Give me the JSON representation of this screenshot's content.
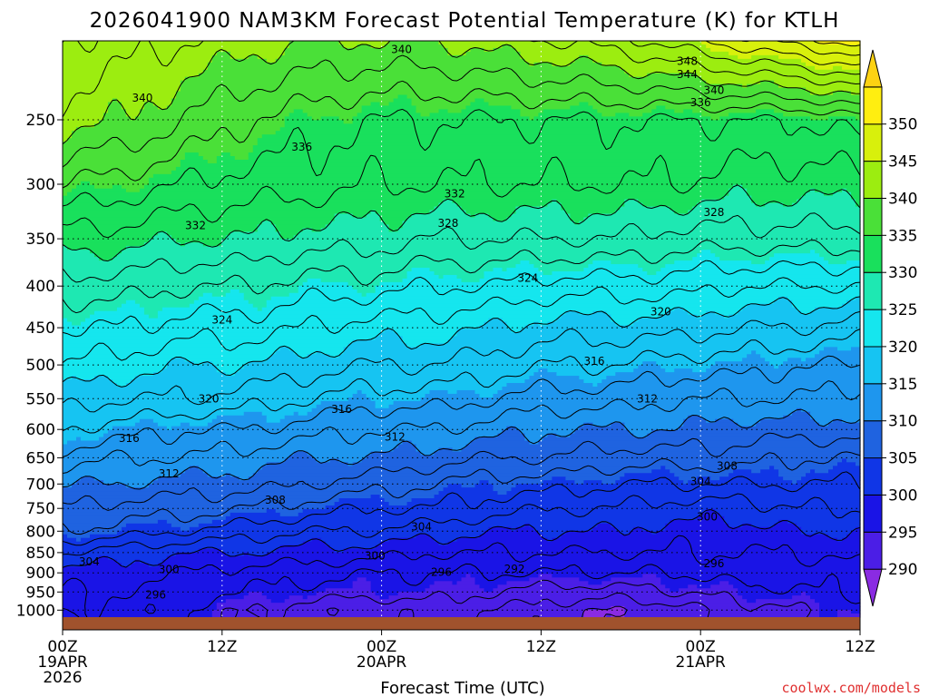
{
  "chart_data": {
    "type": "contour",
    "title": "2026041900 NAM3KM Forecast Potential Temperature (K) for KTLH",
    "xlabel": "Forecast Time (UTC)",
    "ylabel": "",
    "credit": "coolwx.com/models",
    "credit_color": "#e03030",
    "x_hours": [
      0,
      60
    ],
    "x_ticks": [
      {
        "hour": 0,
        "lines": [
          "00Z",
          "19APR",
          "2026"
        ]
      },
      {
        "hour": 12,
        "lines": [
          "12Z"
        ]
      },
      {
        "hour": 24,
        "lines": [
          "00Z",
          "20APR"
        ]
      },
      {
        "hour": 36,
        "lines": [
          "12Z"
        ]
      },
      {
        "hour": 48,
        "lines": [
          "00Z",
          "21APR"
        ]
      },
      {
        "hour": 60,
        "lines": [
          "12Z"
        ]
      }
    ],
    "pressure_range_hpa": [
      1020,
      200
    ],
    "y_ticks": [
      1000,
      950,
      900,
      850,
      800,
      750,
      700,
      650,
      600,
      550,
      500,
      450,
      400,
      350,
      300,
      250
    ],
    "colorbar": {
      "label_values": [
        290,
        295,
        300,
        305,
        310,
        315,
        320,
        325,
        330,
        335,
        340,
        345,
        350
      ],
      "colors": [
        "#8a2be2",
        "#4b1ee6",
        "#1a14e6",
        "#1036e6",
        "#1f63e0",
        "#1e96ee",
        "#16c4f2",
        "#15e6ee",
        "#1ee8b2",
        "#19e05c",
        "#4ae038",
        "#9ced10",
        "#d8f00c",
        "#ffee10",
        "#fdd212"
      ]
    },
    "theta_levels": [
      {
        "hpa": 1000,
        "values": [
          298,
          297,
          296,
          294,
          293,
          292,
          293,
          292,
          291,
          290,
          291,
          293,
          294,
          295
        ]
      },
      {
        "hpa": 950,
        "values": [
          298,
          298,
          297,
          296,
          295,
          295,
          295,
          294,
          293,
          293,
          294,
          295,
          296,
          296
        ]
      },
      {
        "hpa": 900,
        "values": [
          299,
          299,
          298,
          297,
          297,
          296,
          296,
          296,
          296,
          296,
          296,
          297,
          297,
          297
        ]
      },
      {
        "hpa": 850,
        "values": [
          302,
          301,
          300,
          300,
          299,
          299,
          298,
          298,
          298,
          298,
          298,
          298,
          298,
          299
        ]
      },
      {
        "hpa": 800,
        "values": [
          306,
          305,
          304,
          303,
          302,
          302,
          301,
          300,
          300,
          300,
          299,
          299,
          300,
          300
        ]
      },
      {
        "hpa": 750,
        "values": [
          308,
          307,
          307,
          306,
          305,
          304,
          304,
          303,
          302,
          302,
          301,
          301,
          302,
          302
        ]
      },
      {
        "hpa": 700,
        "values": [
          310,
          310,
          309,
          309,
          308,
          307,
          306,
          305,
          305,
          304,
          304,
          304,
          304,
          304
        ]
      },
      {
        "hpa": 650,
        "values": [
          313,
          312,
          312,
          311,
          310,
          310,
          309,
          308,
          308,
          307,
          307,
          307,
          306,
          306
        ]
      },
      {
        "hpa": 600,
        "values": [
          316,
          315,
          314,
          314,
          313,
          312,
          312,
          311,
          310,
          310,
          310,
          309,
          309,
          309
        ]
      },
      {
        "hpa": 550,
        "values": [
          319,
          318,
          318,
          317,
          316,
          315,
          315,
          314,
          313,
          313,
          312,
          312,
          312,
          311
        ]
      },
      {
        "hpa": 500,
        "values": [
          322,
          321,
          320,
          320,
          319,
          318,
          318,
          317,
          316,
          316,
          315,
          315,
          314,
          314
        ]
      },
      {
        "hpa": 450,
        "values": [
          324,
          324,
          323,
          323,
          322,
          321,
          321,
          320,
          319,
          319,
          319,
          318,
          318,
          317
        ]
      },
      {
        "hpa": 400,
        "values": [
          327,
          327,
          326,
          326,
          325,
          325,
          324,
          324,
          323,
          323,
          323,
          322,
          322,
          322
        ]
      },
      {
        "hpa": 350,
        "values": [
          331,
          331,
          330,
          330,
          329,
          329,
          328,
          328,
          328,
          328,
          327,
          327,
          327,
          327
        ]
      },
      {
        "hpa": 300,
        "values": [
          336,
          335,
          334,
          333,
          333,
          332,
          332,
          332,
          332,
          332,
          332,
          331,
          331,
          331
        ]
      },
      {
        "hpa": 250,
        "values": [
          341,
          340,
          338,
          336,
          335,
          334,
          334,
          334,
          334,
          334,
          334,
          334,
          334,
          335
        ]
      },
      {
        "hpa": 200,
        "values": [
          344,
          343,
          342,
          341,
          340,
          340,
          340,
          341,
          342,
          343,
          345,
          347,
          349,
          351
        ]
      }
    ],
    "contour_labels": [
      {
        "text": "340",
        "hour": 25.5,
        "hpa": 205
      },
      {
        "text": "348",
        "hour": 47,
        "hpa": 212
      },
      {
        "text": "344",
        "hour": 47,
        "hpa": 220
      },
      {
        "text": "340",
        "hour": 49,
        "hpa": 230
      },
      {
        "text": "336",
        "hour": 48,
        "hpa": 238
      },
      {
        "text": "340",
        "hour": 6,
        "hpa": 235
      },
      {
        "text": "336",
        "hour": 18,
        "hpa": 270
      },
      {
        "text": "332",
        "hour": 29.5,
        "hpa": 308
      },
      {
        "text": "328",
        "hour": 49,
        "hpa": 325
      },
      {
        "text": "332",
        "hour": 10,
        "hpa": 337
      },
      {
        "text": "328",
        "hour": 29,
        "hpa": 335
      },
      {
        "text": "324",
        "hour": 35,
        "hpa": 391
      },
      {
        "text": "320",
        "hour": 45,
        "hpa": 430
      },
      {
        "text": "324",
        "hour": 12,
        "hpa": 440
      },
      {
        "text": "316",
        "hour": 40,
        "hpa": 495
      },
      {
        "text": "320",
        "hour": 11,
        "hpa": 550
      },
      {
        "text": "312",
        "hour": 44,
        "hpa": 550
      },
      {
        "text": "316",
        "hour": 21,
        "hpa": 567
      },
      {
        "text": "316",
        "hour": 5,
        "hpa": 615
      },
      {
        "text": "312",
        "hour": 25,
        "hpa": 613
      },
      {
        "text": "308",
        "hour": 50,
        "hpa": 665
      },
      {
        "text": "312",
        "hour": 8,
        "hpa": 680
      },
      {
        "text": "304",
        "hour": 48,
        "hpa": 695
      },
      {
        "text": "308",
        "hour": 16,
        "hpa": 733
      },
      {
        "text": "300",
        "hour": 48.5,
        "hpa": 768
      },
      {
        "text": "304",
        "hour": 27,
        "hpa": 790
      },
      {
        "text": "300",
        "hour": 23.5,
        "hpa": 858
      },
      {
        "text": "304",
        "hour": 2,
        "hpa": 872
      },
      {
        "text": "296",
        "hour": 28.5,
        "hpa": 898
      },
      {
        "text": "292",
        "hour": 34,
        "hpa": 890
      },
      {
        "text": "296",
        "hour": 49,
        "hpa": 877
      },
      {
        "text": "300",
        "hour": 8,
        "hpa": 892
      },
      {
        "text": "296",
        "hour": 7,
        "hpa": 958
      }
    ]
  }
}
